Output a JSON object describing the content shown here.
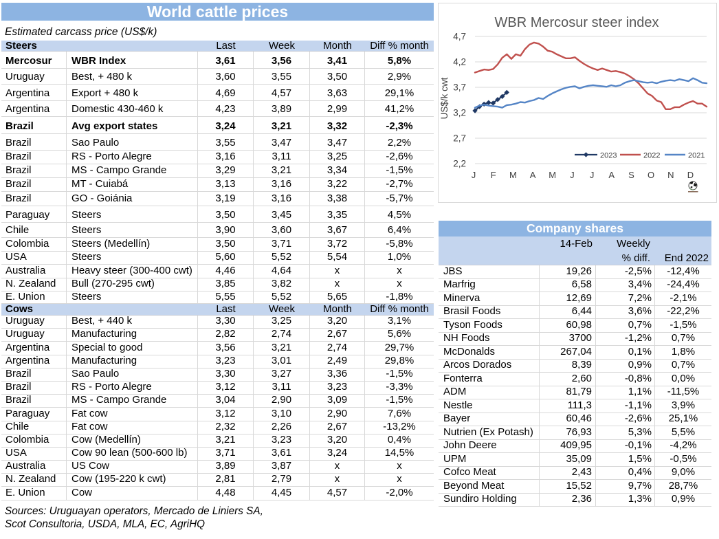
{
  "left_table": {
    "title": "World cattle prices",
    "subtitle": "Estimated carcass price (US$/k)",
    "columns": [
      "Last",
      "Week",
      "Month",
      "Diff % month"
    ],
    "sections": [
      {
        "header": "Steers",
        "rows": [
          {
            "country": "Mercosur",
            "desc": "WBR Index",
            "last": "3,61",
            "week": "3,56",
            "month": "3,41",
            "diff": "5,8%",
            "bold": true
          },
          {
            "country": "Uruguay",
            "desc": "Best, + 480 k",
            "last": "3,60",
            "week": "3,55",
            "month": "3,50",
            "diff": "2,9%",
            "bold": false
          },
          {
            "country": "Argentina",
            "desc": "Export + 480 k",
            "last": "4,69",
            "week": "4,57",
            "month": "3,63",
            "diff": "29,1%",
            "bold": false
          },
          {
            "country": "Argentina",
            "desc": "Domestic 430-460 k",
            "last": "4,23",
            "week": "3,89",
            "month": "2,99",
            "diff": "41,2%",
            "bold": false
          },
          {
            "country": "Brazil",
            "desc": "Avg export states",
            "last": "3,24",
            "week": "3,21",
            "month": "3,32",
            "diff": "-2,3%",
            "bold": true
          },
          {
            "country": "Brazil",
            "desc": "Sao Paulo",
            "last": "3,55",
            "week": "3,47",
            "month": "3,47",
            "diff": "2,2%",
            "bold": false
          },
          {
            "country": "Brazil",
            "desc": "RS - Porto Alegre",
            "last": "3,16",
            "week": "3,11",
            "month": "3,25",
            "diff": "-2,6%",
            "bold": false
          },
          {
            "country": "Brazil",
            "desc": "MS - Campo Grande",
            "last": "3,29",
            "week": "3,21",
            "month": "3,34",
            "diff": "-1,5%",
            "bold": false
          },
          {
            "country": "Brazil",
            "desc": "MT - Cuiabá",
            "last": "3,13",
            "week": "3,16",
            "month": "3,22",
            "diff": "-2,7%",
            "bold": false
          },
          {
            "country": "Brazil",
            "desc": "GO - Goiánia",
            "last": "3,19",
            "week": "3,16",
            "month": "3,38",
            "diff": "-5,7%",
            "bold": false
          },
          {
            "country": "Paraguay",
            "desc": "Steers",
            "last": "3,50",
            "week": "3,45",
            "month": "3,35",
            "diff": "4,5%",
            "bold": false
          },
          {
            "country": "Chile",
            "desc": "Steers",
            "last": "3,90",
            "week": "3,60",
            "month": "3,67",
            "diff": "6,4%",
            "bold": false
          },
          {
            "country": "Colombia",
            "desc": "Steers (Medellín)",
            "last": "3,50",
            "week": "3,71",
            "month": "3,72",
            "diff": "-5,8%",
            "bold": false
          },
          {
            "country": "USA",
            "desc": "Steers",
            "last": "5,60",
            "week": "5,52",
            "month": "5,54",
            "diff": "1,0%",
            "bold": false
          },
          {
            "country": "Australia",
            "desc": "Heavy steer (300-400 cwt)",
            "last": "4,46",
            "week": "4,64",
            "month": "x",
            "diff": "x",
            "bold": false
          },
          {
            "country": "N. Zealand",
            "desc": "Bull (270-295 cwt)",
            "last": "3,85",
            "week": "3,82",
            "month": "x",
            "diff": "x",
            "bold": false
          },
          {
            "country": "E. Union",
            "desc": "Steers",
            "last": "5,55",
            "week": "5,52",
            "month": "5,65",
            "diff": "-1,8%",
            "bold": false
          }
        ]
      },
      {
        "header": "Cows",
        "rows": [
          {
            "country": "Uruguay",
            "desc": "Best, + 440 k",
            "last": "3,30",
            "week": "3,25",
            "month": "3,20",
            "diff": "3,1%",
            "bold": false
          },
          {
            "country": "Uruguay",
            "desc": "Manufacturing",
            "last": "2,82",
            "week": "2,74",
            "month": "2,67",
            "diff": "5,6%",
            "bold": false
          },
          {
            "country": "Argentina",
            "desc": "Special to good",
            "last": "3,56",
            "week": "3,21",
            "month": "2,74",
            "diff": "29,7%",
            "bold": false
          },
          {
            "country": "Argentina",
            "desc": "Manufacturing",
            "last": "3,23",
            "week": "3,01",
            "month": "2,49",
            "diff": "29,8%",
            "bold": false
          },
          {
            "country": "Brazil",
            "desc": "Sao Paulo",
            "last": "3,30",
            "week": "3,27",
            "month": "3,36",
            "diff": "-1,5%",
            "bold": false
          },
          {
            "country": "Brazil",
            "desc": "RS - Porto Alegre",
            "last": "3,12",
            "week": "3,11",
            "month": "3,23",
            "diff": "-3,3%",
            "bold": false
          },
          {
            "country": "Brazil",
            "desc": "MS - Campo Grande",
            "last": "3,04",
            "week": "2,90",
            "month": "3,09",
            "diff": "-1,5%",
            "bold": false
          },
          {
            "country": "Paraguay",
            "desc": "Fat cow",
            "last": "3,12",
            "week": "3,10",
            "month": "2,90",
            "diff": "7,6%",
            "bold": false
          },
          {
            "country": "Chile",
            "desc": "Fat cow",
            "last": "2,32",
            "week": "2,26",
            "month": "2,67",
            "diff": "-13,2%",
            "bold": false
          },
          {
            "country": "Colombia",
            "desc": "Cow (Medellín)",
            "last": "3,21",
            "week": "3,23",
            "month": "3,20",
            "diff": "0,4%",
            "bold": false
          },
          {
            "country": "USA",
            "desc": "Cow 90 lean (500-600 lb)",
            "last": "3,71",
            "week": "3,61",
            "month": "3,24",
            "diff": "14,5%",
            "bold": false
          },
          {
            "country": "Australia",
            "desc": "US Cow",
            "last": "3,89",
            "week": "3,87",
            "month": "x",
            "diff": "x",
            "bold": false
          },
          {
            "country": "N. Zealand",
            "desc": "Cow (195-220 k cwt)",
            "last": "2,81",
            "week": "2,79",
            "month": "x",
            "diff": "x",
            "bold": false
          },
          {
            "country": "E. Union",
            "desc": "Cow",
            "last": "4,48",
            "week": "4,45",
            "month": "4,57",
            "diff": "-2,0%",
            "bold": false
          }
        ]
      }
    ],
    "sources_line1": "Sources: Uruguayan operators, Mercado de Liniers SA,",
    "sources_line2": "Scot Consultoria, USDA, MLA, EC, AgriHQ"
  },
  "chart_data": {
    "type": "line",
    "title": "WBR Mercosur steer index",
    "ylabel": "US$/k cwt",
    "x_categories": [
      "J",
      "F",
      "M",
      "A",
      "M",
      "J",
      "J",
      "A",
      "S",
      "O",
      "N",
      "D"
    ],
    "y_tick_labels": [
      "4,7",
      "4,2",
      "3,7",
      "3,2",
      "2,7",
      "2,2"
    ],
    "y_tick_values": [
      4.7,
      4.2,
      3.7,
      3.2,
      2.7,
      2.2
    ],
    "ylim": [
      2.2,
      4.7
    ],
    "grid": true,
    "legend_position": "bottom-right-inside",
    "icon": "globe-icon",
    "series": [
      {
        "name": "2023",
        "color": "#1F3864",
        "marker": "diamond",
        "values": [
          3.24,
          3.32,
          3.37,
          3.4,
          3.39,
          3.46,
          3.52,
          3.6
        ]
      },
      {
        "name": "2022",
        "color": "#C0504D",
        "marker": "none",
        "values": [
          3.99,
          4.02,
          4.05,
          4.04,
          4.06,
          4.15,
          4.28,
          4.35,
          4.26,
          4.35,
          4.32,
          4.45,
          4.54,
          4.58,
          4.56,
          4.5,
          4.42,
          4.4,
          4.35,
          4.31,
          4.27,
          4.27,
          4.29,
          4.22,
          4.16,
          4.11,
          4.07,
          4.04,
          4.07,
          4.04,
          4.01,
          4.02,
          4.0,
          3.97,
          3.92,
          3.86,
          3.78,
          3.68,
          3.58,
          3.53,
          3.44,
          3.41,
          3.27,
          3.27,
          3.31,
          3.31,
          3.36,
          3.4,
          3.43,
          3.38,
          3.38,
          3.32
        ]
      },
      {
        "name": "2021",
        "color": "#5585C6",
        "marker": "none",
        "values": [
          3.3,
          3.34,
          3.36,
          3.34,
          3.33,
          3.32,
          3.3,
          3.35,
          3.36,
          3.38,
          3.41,
          3.4,
          3.43,
          3.45,
          3.49,
          3.47,
          3.53,
          3.58,
          3.62,
          3.66,
          3.69,
          3.71,
          3.72,
          3.68,
          3.71,
          3.73,
          3.74,
          3.73,
          3.72,
          3.71,
          3.74,
          3.72,
          3.74,
          3.79,
          3.82,
          3.84,
          3.82,
          3.8,
          3.79,
          3.8,
          3.78,
          3.81,
          3.83,
          3.84,
          3.83,
          3.86,
          3.84,
          3.82,
          3.88,
          3.84,
          3.79,
          3.78
        ]
      }
    ]
  },
  "company_table": {
    "title": "Company shares",
    "header": {
      "date": "14-Feb",
      "weekly1": "Weekly",
      "weekly2": "% diff.",
      "end": "End 2022"
    },
    "rows": [
      {
        "name": "JBS",
        "price": "19,26",
        "weekly": "-2,5%",
        "end": "-12,4%"
      },
      {
        "name": "Marfrig",
        "price": "6,58",
        "weekly": "3,4%",
        "end": "-24,4%"
      },
      {
        "name": "Minerva",
        "price": "12,69",
        "weekly": "7,2%",
        "end": "-2,1%"
      },
      {
        "name": "Brasil Foods",
        "price": "6,44",
        "weekly": "3,6%",
        "end": "-22,2%"
      },
      {
        "name": "Tyson Foods",
        "price": "60,98",
        "weekly": "0,7%",
        "end": "-1,5%"
      },
      {
        "name": "NH Foods",
        "price": "3700",
        "weekly": "-1,2%",
        "end": "0,7%"
      },
      {
        "name": "McDonalds",
        "price": "267,04",
        "weekly": "0,1%",
        "end": "1,8%"
      },
      {
        "name": "Arcos Dorados",
        "price": "8,39",
        "weekly": "0,9%",
        "end": "0,7%"
      },
      {
        "name": "Fonterra",
        "price": "2,60",
        "weekly": "-0,8%",
        "end": "0,0%"
      },
      {
        "name": "ADM",
        "price": "81,79",
        "weekly": "1,1%",
        "end": "-11,5%"
      },
      {
        "name": "Nestle",
        "price": "111,3",
        "weekly": "-1,1%",
        "end": "3,9%"
      },
      {
        "name": "Bayer",
        "price": "60,46",
        "weekly": "-2,6%",
        "end": "25,1%"
      },
      {
        "name": "Nutrien (Ex Potash)",
        "price": "76,93",
        "weekly": "5,3%",
        "end": "5,5%"
      },
      {
        "name": "John Deere",
        "price": "409,95",
        "weekly": "-0,1%",
        "end": "-4,2%"
      },
      {
        "name": "UPM",
        "price": "35,09",
        "weekly": "1,5%",
        "end": "-0,5%"
      },
      {
        "name": "Cofco Meat",
        "price": "2,43",
        "weekly": "0,4%",
        "end": "9,0%"
      },
      {
        "name": "Beyond Meat",
        "price": "15,52",
        "weekly": "9,7%",
        "end": "28,7%"
      },
      {
        "name": "Sundiro Holding",
        "price": "2,36",
        "weekly": "1,3%",
        "end": "0,9%"
      }
    ]
  },
  "colors": {
    "title_bar": "#8DB4E2",
    "header_band": "#C4D5EE",
    "grid_border": "#D8D8D8",
    "chart_title": "#595959",
    "axis_text": "#404040",
    "series_2023": "#1F3864",
    "series_2022": "#C0504D",
    "series_2021": "#5585C6"
  }
}
